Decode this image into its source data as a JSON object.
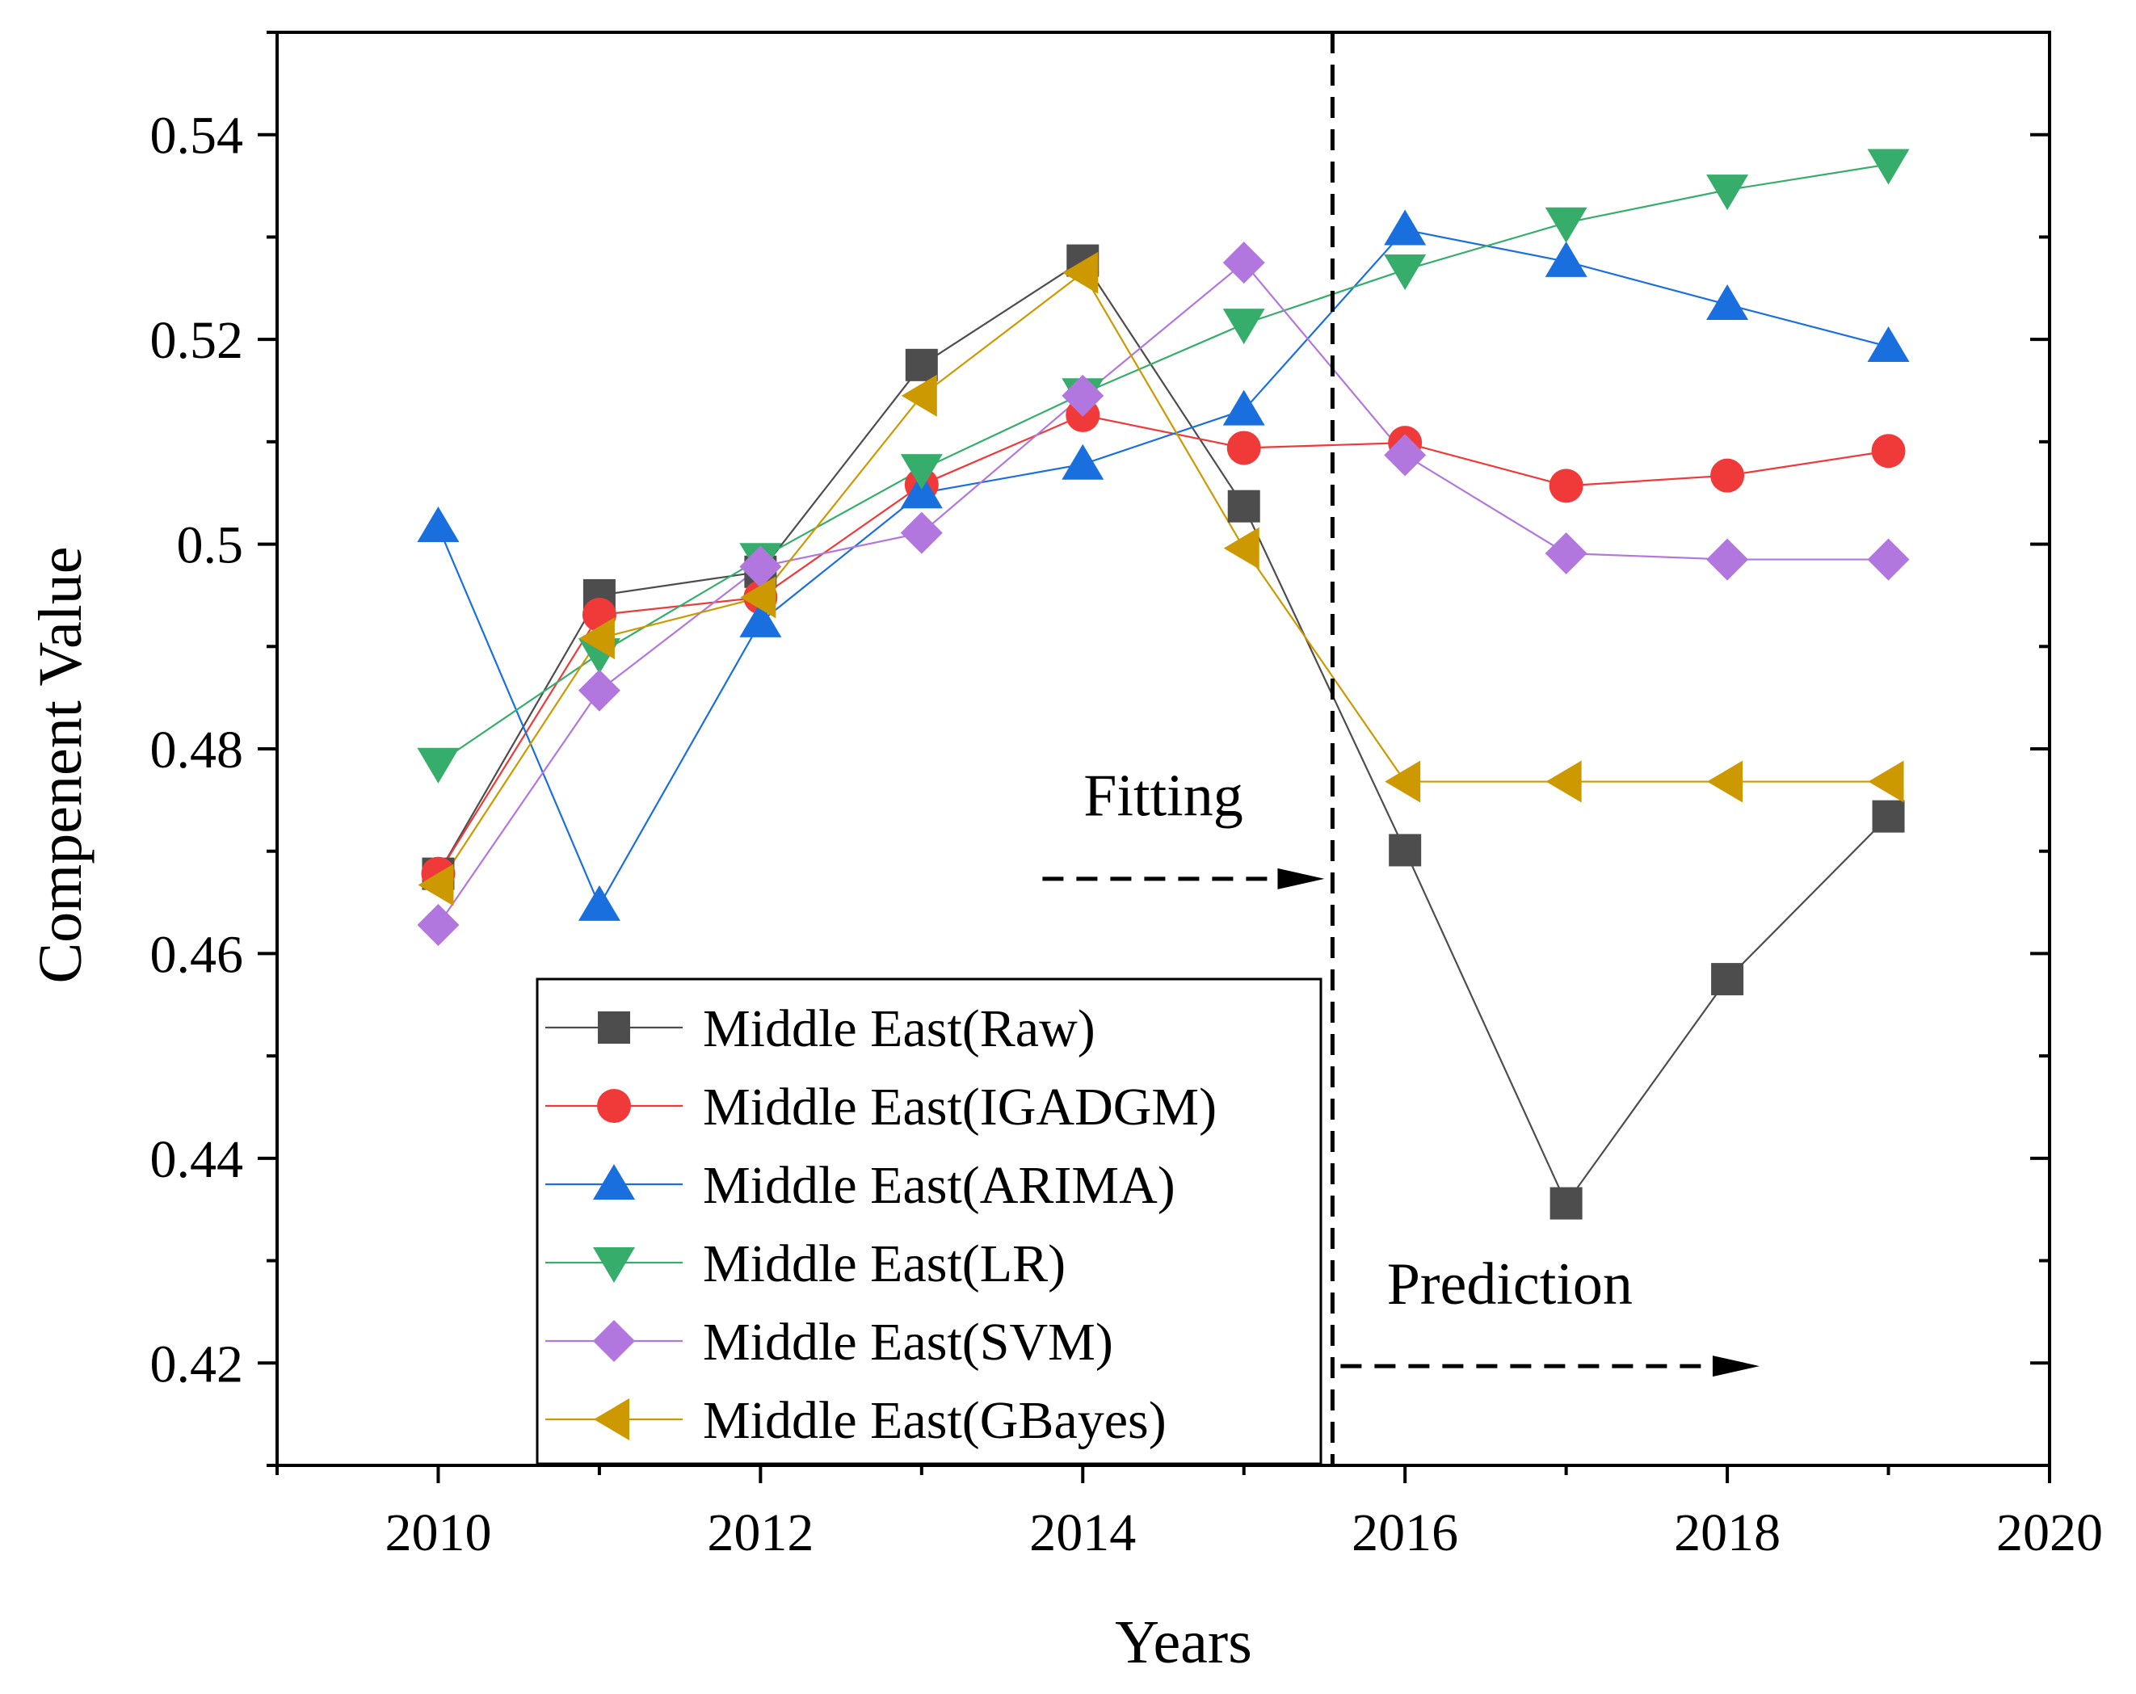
{
  "chart_data": {
    "type": "line",
    "title": "",
    "xlabel": "Years",
    "ylabel": "Compenent Value",
    "xlim": [
      2009,
      2020
    ],
    "ylim": [
      0.41,
      0.55
    ],
    "x_ticks": [
      2010,
      2012,
      2014,
      2016,
      2018,
      2020
    ],
    "y_ticks": [
      0.42,
      0.44,
      0.46,
      0.48,
      0.5,
      0.52,
      0.54
    ],
    "y_tick_labels": [
      "0.42",
      "0.44",
      "0.46",
      "0.48",
      "0.5",
      "0.52",
      "0.54"
    ],
    "grid": false,
    "legend_position": "bottom-left",
    "x": [
      2010,
      2011,
      2012,
      2013,
      2014,
      2015,
      2016,
      2017,
      2018,
      2019
    ],
    "series": [
      {
        "name": "Middle East(Raw)",
        "color": "#4d4d4d",
        "marker": "square",
        "values": [
          0.4678,
          0.495,
          0.4973,
          0.5175,
          0.5277,
          0.5037,
          0.4701,
          0.4356,
          0.4575,
          0.4734
        ]
      },
      {
        "name": "Middle East(IGADGM)",
        "color": "#f03a3a",
        "marker": "circle",
        "values": [
          0.4678,
          0.4931,
          0.4948,
          0.5058,
          0.5126,
          0.5094,
          0.5099,
          0.5057,
          0.5067,
          0.5091
        ]
      },
      {
        "name": "Middle East(ARIMA)",
        "color": "#1a6fdf",
        "marker": "triangle-up",
        "values": [
          0.5017,
          0.4647,
          0.4924,
          0.505,
          0.5078,
          0.5131,
          0.5307,
          0.5276,
          0.5234,
          0.5193
        ]
      },
      {
        "name": "Middle East(LR)",
        "color": "#37ad6b",
        "marker": "triangle-down",
        "values": [
          0.4786,
          0.4893,
          0.4986,
          0.5073,
          0.5147,
          0.5215,
          0.5268,
          0.5314,
          0.5346,
          0.5371
        ]
      },
      {
        "name": "Middle East(SVM)",
        "color": "#b177de",
        "marker": "diamond",
        "values": [
          0.4628,
          0.4857,
          0.4978,
          0.5011,
          0.5145,
          0.5275,
          0.5087,
          0.4991,
          0.4985,
          0.4985
        ]
      },
      {
        "name": "Middle East(GBayes)",
        "color": "#cc9900",
        "marker": "triangle-left",
        "values": [
          0.4667,
          0.4908,
          0.4948,
          0.5145,
          0.5265,
          0.4996,
          0.4768,
          0.4768,
          0.4768,
          0.4768
        ]
      }
    ],
    "divider_x": 2015.55,
    "annotations": [
      {
        "text": "Fitting",
        "arrow_from_x": 2013.75,
        "arrow_to_x": 2015.5,
        "arrow_y": 0.4673,
        "text_x": 2014.5,
        "text_y": 0.4735
      },
      {
        "text": "Prediction",
        "arrow_from_x": 2015.6,
        "arrow_to_x": 2018.2,
        "arrow_y": 0.4197,
        "text_x": 2016.65,
        "text_y": 0.4258
      }
    ]
  }
}
